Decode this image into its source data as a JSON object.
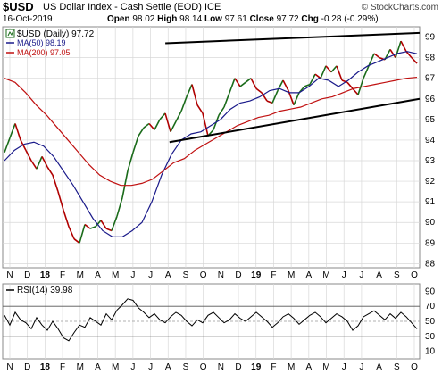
{
  "header": {
    "symbol": "$USD",
    "description": "US Dollar Index - Cash Settle (EOD)",
    "exchange": "ICE",
    "date": "16-Oct-2019",
    "open_label": "Open",
    "open": "98.02",
    "high_label": "High",
    "high": "98.14",
    "low_label": "Low",
    "low": "97.61",
    "close_label": "Close",
    "close": "97.72",
    "chg_label": "Chg",
    "chg": "-0.28 (-0.29%)",
    "watermark": "© StockCharts.com"
  },
  "legend": {
    "price": "$USD (Daily) 97.72",
    "ma50": "MA(50) 98.19",
    "ma200": "MA(200) 97.05",
    "rsi": "RSI(14) 39.98"
  },
  "colors": {
    "price": "#1a6b1a",
    "price_down": "#b00000",
    "ma50": "#1a1a8a",
    "ma200": "#c01010",
    "channel": "#000000",
    "grid": "#d8d8d8",
    "rsi": "#000000"
  },
  "chart_data": [
    {
      "type": "line",
      "title": "$USD (Daily) 97.72",
      "x_tick_labels": [
        "N",
        "D",
        "18",
        "F",
        "M",
        "A",
        "M",
        "J",
        "J",
        "A",
        "S",
        "O",
        "N",
        "D",
        "19",
        "F",
        "M",
        "A",
        "M",
        "J",
        "J",
        "A",
        "S",
        "O"
      ],
      "ylim": [
        87.8,
        99.5
      ],
      "y_ticks": [
        88,
        89,
        90,
        91,
        92,
        93,
        94,
        95,
        96,
        97,
        98,
        99
      ],
      "series": [
        {
          "name": "$USD",
          "values": [
            93.4,
            94.1,
            94.8,
            94.0,
            93.5,
            93.0,
            92.6,
            93.2,
            92.7,
            92.3,
            91.5,
            90.6,
            89.8,
            89.2,
            89.0,
            89.9,
            89.7,
            89.8,
            90.1,
            89.7,
            89.6,
            90.3,
            91.2,
            92.5,
            93.4,
            94.2,
            94.6,
            94.8,
            94.5,
            95.0,
            95.3,
            94.4,
            94.9,
            95.4,
            96.1,
            96.7,
            95.7,
            95.3,
            94.2,
            94.5,
            95.2,
            95.6,
            96.3,
            97.0,
            96.6,
            96.8,
            97.0,
            96.5,
            96.3,
            95.9,
            95.8,
            96.4,
            96.9,
            96.4,
            95.7,
            96.3,
            96.6,
            96.7,
            97.2,
            97.0,
            97.6,
            97.3,
            97.6,
            96.9,
            96.8,
            96.5,
            96.2,
            97.0,
            97.6,
            98.2,
            98.0,
            97.9,
            98.4,
            98.0,
            98.8,
            98.3,
            98.0,
            97.72
          ]
        },
        {
          "name": "MA(50)",
          "values": [
            93.0,
            93.5,
            93.8,
            93.9,
            93.7,
            93.2,
            92.5,
            91.8,
            91.0,
            90.2,
            89.6,
            89.3,
            89.3,
            89.6,
            90.0,
            91.0,
            92.3,
            93.3,
            94.0,
            94.3,
            94.4,
            94.7,
            95.0,
            95.5,
            95.8,
            95.9,
            96.1,
            96.4,
            96.5,
            96.3,
            96.3,
            96.6,
            97.0,
            96.9,
            96.6,
            96.9,
            97.3,
            97.6,
            97.8,
            98.0,
            98.2,
            98.3,
            98.19
          ]
        },
        {
          "name": "MA(200)",
          "values": [
            97.0,
            96.8,
            96.3,
            95.7,
            95.2,
            94.6,
            94.0,
            93.4,
            92.8,
            92.3,
            92.0,
            91.8,
            91.8,
            91.9,
            92.1,
            92.5,
            92.9,
            93.1,
            93.5,
            93.8,
            94.1,
            94.4,
            94.7,
            94.9,
            95.1,
            95.2,
            95.4,
            95.5,
            95.6,
            95.8,
            96.0,
            96.1,
            96.3,
            96.5,
            96.6,
            96.7,
            96.8,
            96.9,
            97.0,
            97.05
          ]
        }
      ],
      "annotations": [
        {
          "name": "channel-upper",
          "from": [
            98.7,
            0.39
          ],
          "to": [
            99.2,
            1.0
          ]
        },
        {
          "name": "channel-lower",
          "from": [
            93.9,
            0.4
          ],
          "to": [
            96.0,
            1.0
          ]
        }
      ]
    },
    {
      "type": "line",
      "title": "RSI(14) 39.98",
      "ylim": [
        0,
        100
      ],
      "y_ticks": [
        10,
        30,
        50,
        70,
        90
      ],
      "reference_lines": [
        30,
        50,
        70
      ],
      "series": [
        {
          "name": "RSI(14)",
          "values": [
            58,
            45,
            62,
            52,
            48,
            40,
            55,
            45,
            38,
            50,
            40,
            28,
            24,
            35,
            45,
            42,
            55,
            50,
            45,
            60,
            52,
            65,
            72,
            80,
            78,
            68,
            62,
            55,
            60,
            52,
            48,
            56,
            62,
            58,
            50,
            44,
            52,
            48,
            58,
            62,
            55,
            48,
            52,
            60,
            54,
            50,
            56,
            62,
            56,
            50,
            42,
            48,
            56,
            60,
            54,
            46,
            52,
            58,
            62,
            56,
            48,
            54,
            60,
            56,
            50,
            38,
            44,
            56,
            60,
            64,
            58,
            52,
            60,
            54,
            62,
            56,
            48,
            40
          ]
        }
      ]
    }
  ]
}
